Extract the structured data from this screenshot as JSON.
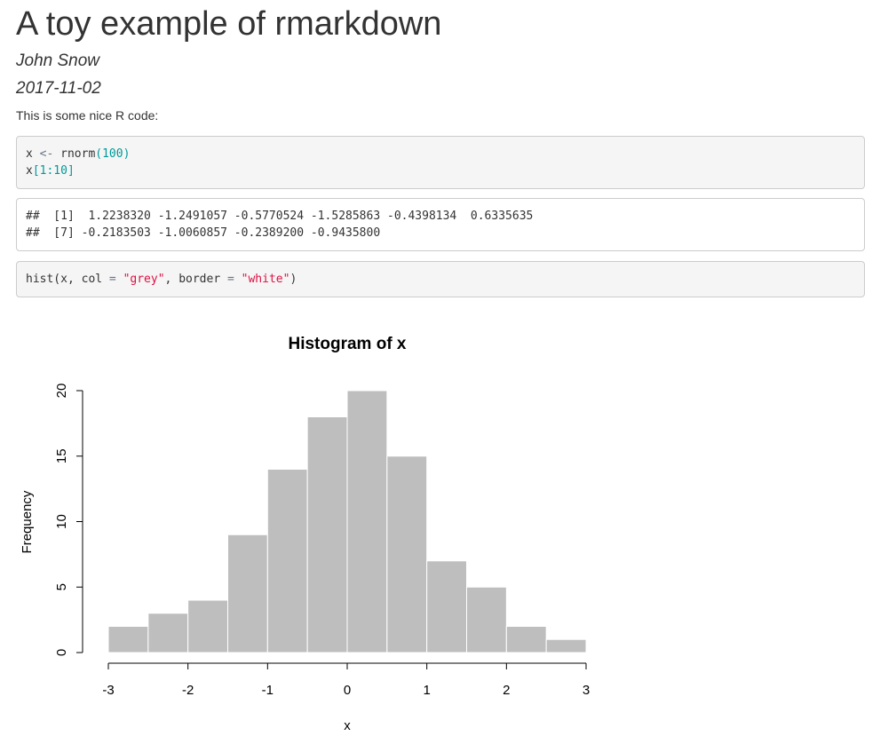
{
  "header": {
    "title": "A toy example of rmarkdown",
    "author": "John Snow",
    "date": "2017-11-02"
  },
  "paragraph": "This is some nice R code:",
  "code_blocks": [
    {
      "lines": [
        [
          {
            "text": "x ",
            "color": "#333333"
          },
          {
            "text": "<-",
            "color": "#687687"
          },
          {
            "text": " rnorm",
            "color": "#333333"
          },
          {
            "text": "(100)",
            "color": "#009999"
          }
        ],
        [
          {
            "text": "x",
            "color": "#333333"
          },
          {
            "text": "[1:10]",
            "color": "#009999"
          }
        ]
      ]
    },
    {
      "lines": [
        [
          {
            "text": "hist(x, col ",
            "color": "#333333"
          },
          {
            "text": "=",
            "color": "#687687"
          },
          {
            "text": " ",
            "color": "#333333"
          },
          {
            "text": "\"grey\"",
            "color": "#dd1144"
          },
          {
            "text": ", border ",
            "color": "#333333"
          },
          {
            "text": "=",
            "color": "#687687"
          },
          {
            "text": " ",
            "color": "#333333"
          },
          {
            "text": "\"white\"",
            "color": "#dd1144"
          },
          {
            "text": ")",
            "color": "#333333"
          }
        ]
      ]
    }
  ],
  "output": {
    "lines": [
      "##  [1]  1.2238320 -1.2491057 -0.5770524 -1.5285863 -0.4398134  0.6335635",
      "##  [7] -0.2183503 -1.0060857 -0.2389200 -0.9435800"
    ]
  },
  "chart_data": {
    "type": "histogram",
    "title": "Histogram of x",
    "x_label": "x",
    "y_label": "Frequency",
    "bins": [
      -3,
      -2.5,
      -2,
      -1.5,
      -1,
      -0.5,
      0,
      0.5,
      1,
      1.5,
      2,
      2.5,
      3
    ],
    "values": [
      2,
      3,
      4,
      9,
      14,
      18,
      20,
      15,
      7,
      5,
      2,
      1
    ],
    "color": "#bebebe",
    "border": "#ffffff",
    "xlim": [
      -3,
      3
    ],
    "xticks": [
      -3,
      -2,
      -1,
      0,
      1,
      2,
      3
    ],
    "ylim": [
      0,
      20
    ],
    "yticks": [
      0,
      5,
      10,
      15,
      20
    ]
  }
}
